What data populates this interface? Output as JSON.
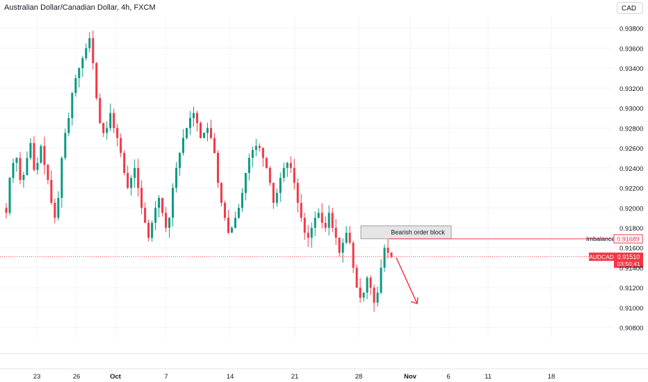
{
  "header": {
    "title": "Australian Dollar/Canadian Dollar, 4h, FXCM",
    "currency_button": "CAD"
  },
  "colors": {
    "up": "#089981",
    "down": "#f23645",
    "grid": "#f0f3fa",
    "axis_text": "#131722",
    "accent": "#f23645"
  },
  "chart_data": {
    "type": "candlestick",
    "symbol": "AUDCAD",
    "interval": "4h",
    "ylim": [
      0.907,
      0.9393
    ],
    "y_ticks": [
      "0.93800",
      "0.93600",
      "0.93400",
      "0.93200",
      "0.93000",
      "0.92800",
      "0.92600",
      "0.92400",
      "0.92200",
      "0.92000",
      "0.91800",
      "0.91600",
      "0.91400",
      "0.91200",
      "0.91000",
      "0.90800"
    ],
    "x_ticks": [
      "23",
      "26",
      "Oct",
      "7",
      "14",
      "21",
      "28",
      "Nov",
      "6",
      "11",
      "18"
    ],
    "price_path": [
      [
        0,
        0.92
      ],
      [
        1,
        0.9195
      ],
      [
        2,
        0.923
      ],
      [
        3,
        0.9245
      ],
      [
        4,
        0.925
      ],
      [
        5,
        0.9228
      ],
      [
        6,
        0.9233
      ],
      [
        7,
        0.925
      ],
      [
        8,
        0.9265
      ],
      [
        9,
        0.9238
      ],
      [
        10,
        0.9245
      ],
      [
        11,
        0.9262
      ],
      [
        12,
        0.9243
      ],
      [
        13,
        0.9228
      ],
      [
        14,
        0.9205
      ],
      [
        15,
        0.919
      ],
      [
        16,
        0.921
      ],
      [
        17,
        0.925
      ],
      [
        18,
        0.9275
      ],
      [
        19,
        0.929
      ],
      [
        20,
        0.9315
      ],
      [
        21,
        0.933
      ],
      [
        22,
        0.934
      ],
      [
        23,
        0.935
      ],
      [
        24,
        0.936
      ],
      [
        25,
        0.937
      ],
      [
        26,
        0.9345
      ],
      [
        27,
        0.931
      ],
      [
        28,
        0.9285
      ],
      [
        29,
        0.9275
      ],
      [
        30,
        0.928
      ],
      [
        31,
        0.9295
      ],
      [
        32,
        0.928
      ],
      [
        33,
        0.927
      ],
      [
        34,
        0.9255
      ],
      [
        35,
        0.9235
      ],
      [
        36,
        0.922
      ],
      [
        37,
        0.923
      ],
      [
        38,
        0.924
      ],
      [
        39,
        0.922
      ],
      [
        40,
        0.92
      ],
      [
        41,
        0.9185
      ],
      [
        42,
        0.917
      ],
      [
        43,
        0.9185
      ],
      [
        44,
        0.92
      ],
      [
        45,
        0.921
      ],
      [
        46,
        0.9195
      ],
      [
        47,
        0.918
      ],
      [
        48,
        0.919
      ],
      [
        49,
        0.922
      ],
      [
        50,
        0.924
      ],
      [
        51,
        0.9255
      ],
      [
        52,
        0.927
      ],
      [
        53,
        0.928
      ],
      [
        54,
        0.929
      ],
      [
        55,
        0.9295
      ],
      [
        56,
        0.9285
      ],
      [
        57,
        0.927
      ],
      [
        58,
        0.9275
      ],
      [
        59,
        0.928
      ],
      [
        60,
        0.927
      ],
      [
        61,
        0.9255
      ],
      [
        62,
        0.9225
      ],
      [
        63,
        0.9205
      ],
      [
        64,
        0.919
      ],
      [
        65,
        0.9175
      ],
      [
        66,
        0.918
      ],
      [
        67,
        0.919
      ],
      [
        68,
        0.92
      ],
      [
        69,
        0.9215
      ],
      [
        70,
        0.9235
      ],
      [
        71,
        0.925
      ],
      [
        72,
        0.9258
      ],
      [
        73,
        0.9262
      ],
      [
        74,
        0.926
      ],
      [
        75,
        0.925
      ],
      [
        76,
        0.924
      ],
      [
        77,
        0.9225
      ],
      [
        78,
        0.9205
      ],
      [
        79,
        0.9215
      ],
      [
        80,
        0.923
      ],
      [
        81,
        0.924
      ],
      [
        82,
        0.9245
      ],
      [
        83,
        0.924
      ],
      [
        84,
        0.9225
      ],
      [
        85,
        0.9205
      ],
      [
        86,
        0.919
      ],
      [
        87,
        0.9175
      ],
      [
        88,
        0.917
      ],
      [
        89,
        0.918
      ],
      [
        90,
        0.919
      ],
      [
        91,
        0.9195
      ],
      [
        92,
        0.9185
      ],
      [
        93,
        0.918
      ],
      [
        94,
        0.9195
      ],
      [
        95,
        0.918
      ],
      [
        96,
        0.917
      ],
      [
        97,
        0.9155
      ],
      [
        98,
        0.9165
      ],
      [
        99,
        0.9175
      ],
      [
        100,
        0.9165
      ],
      [
        101,
        0.914
      ],
      [
        102,
        0.912
      ],
      [
        103,
        0.911
      ],
      [
        104,
        0.9115
      ],
      [
        105,
        0.913
      ],
      [
        106,
        0.912
      ],
      [
        107,
        0.9105
      ],
      [
        108,
        0.9115
      ],
      [
        109,
        0.914
      ],
      [
        110,
        0.916
      ],
      [
        111,
        0.9155
      ],
      [
        112,
        0.9151
      ]
    ],
    "annotations": {
      "order_block": {
        "label": "Bearish order block",
        "top": 0.9182,
        "bottom": 0.9169
      },
      "imbalance": {
        "label": "Imbalance",
        "price": 0.91689,
        "price_label": "0.91689"
      },
      "current_price": {
        "symbol": "AUDCAD",
        "price": 0.9151,
        "price_label": "0.91510",
        "countdown": "03:50:41"
      },
      "arrow": {
        "from_price": 0.915,
        "to_price": 0.9104
      }
    }
  }
}
